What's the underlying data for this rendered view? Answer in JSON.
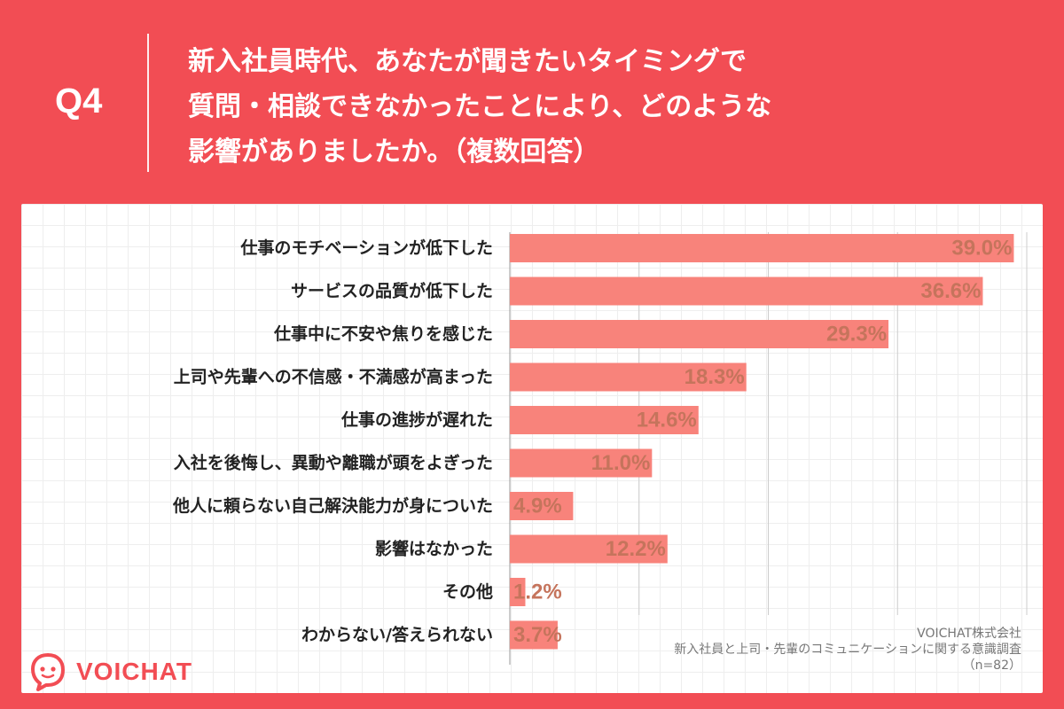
{
  "question": {
    "label": "Q4",
    "lines": [
      "新入社員時代、あなたが聞きたいタイミングで",
      "質問・相談できなかったことにより、どのような",
      "影響がありましたか。（複数回答）"
    ]
  },
  "colors": {
    "header_bg": "#f24d54",
    "bar": "#f8837b",
    "value_text": "#c5745c",
    "gridline": "#cccccc"
  },
  "chart_data": {
    "type": "bar",
    "orientation": "horizontal",
    "categories": [
      "仕事のモチベーションが低下した",
      "サービスの品質が低下した",
      "仕事中に不安や焦りを感じた",
      "上司や先輩への不信感・不満感が高まった",
      "仕事の進捗が遅れた",
      "入社を後悔し、異動や離職が頭をよぎった",
      "他人に頼らない自己解決能力が身についた",
      "影響はなかった",
      "その他",
      "わからない/答えられない"
    ],
    "values": [
      39.0,
      36.6,
      29.3,
      18.3,
      14.6,
      11.0,
      4.9,
      12.2,
      1.2,
      3.7
    ],
    "value_labels": [
      "39.0%",
      "36.6%",
      "29.3%",
      "18.3%",
      "14.6%",
      "11.0%",
      "4.9%",
      "12.2%",
      "1.2%",
      "3.7%"
    ],
    "xlim": [
      0,
      40
    ],
    "grid_ticks": [
      10,
      20,
      30,
      40
    ]
  },
  "source": {
    "company": "VOICHAT株式会社",
    "survey": "新入社員と上司・先輩のコミュニケーションに関する意識調査",
    "sample": "（n=82）"
  },
  "logo": {
    "text": "VOICHAT",
    "icon": "voichat-speech-bubble-icon"
  }
}
